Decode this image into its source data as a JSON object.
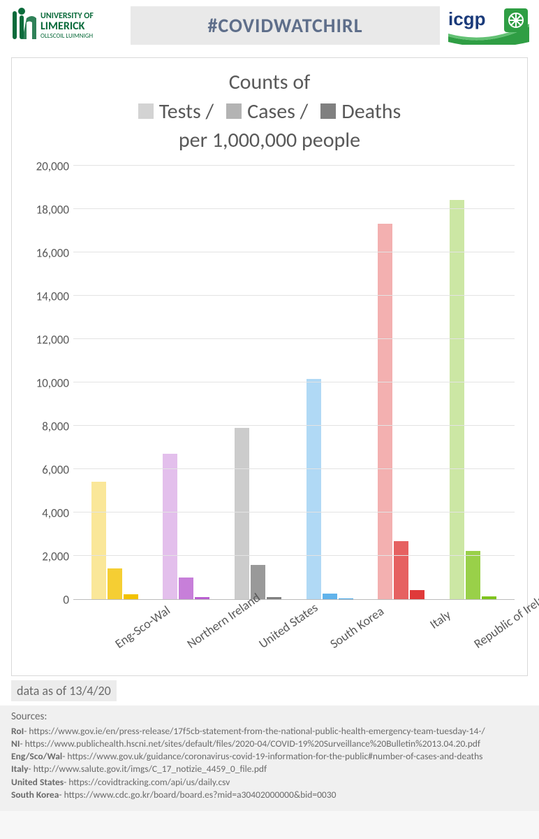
{
  "header": {
    "banner": "#COVIDWATCHIRL",
    "ul_logo_text_top": "UNIVERSITY OF",
    "ul_logo_text_mid": "LIMERICK",
    "ul_logo_text_sub": "OLLSCOIL LUIMNIGH",
    "icgp_text": "icgp"
  },
  "chart": {
    "type": "grouped-bar",
    "title_line1": "Counts of",
    "title_line2": "per 1,000,000 people",
    "legend": [
      {
        "label": "Tests /",
        "opacity": 0.35
      },
      {
        "label": "Cases /",
        "opacity": 0.6
      },
      {
        "label": "Deaths",
        "opacity": 1.0
      }
    ],
    "legend_swatch_base": "#808080",
    "y": {
      "min": 0,
      "max": 20000,
      "step": 2000,
      "ticks": [
        0,
        2000,
        4000,
        6000,
        8000,
        10000,
        12000,
        14000,
        16000,
        18000,
        20000
      ]
    },
    "categories": [
      {
        "label": "Eng-Sco-Wal",
        "hue": "#f2c200",
        "tests": 5400,
        "cases": 1400,
        "deaths": 200
      },
      {
        "label": "Northern Ireland",
        "hue": "#b95fd0",
        "tests": 6700,
        "cases": 1000,
        "deaths": 80
      },
      {
        "label": "United States",
        "hue": "#808080",
        "tests": 7900,
        "cases": 1550,
        "deaths": 80
      },
      {
        "label": "South Korea",
        "hue": "#39a0e6",
        "tests": 10150,
        "cases": 250,
        "deaths": 10
      },
      {
        "label": "Italy",
        "hue": "#e03a3a",
        "tests": 17300,
        "cases": 2650,
        "deaths": 400
      },
      {
        "label": "Republic of Ireland",
        "hue": "#7fc41c",
        "tests": 18400,
        "cases": 2200,
        "deaths": 100
      }
    ],
    "bar_opacities": {
      "tests": 0.4,
      "cases": 0.8,
      "deaths": 1.0
    },
    "grid_color": "#e3e3e3",
    "axis_color": "#bcbcbc",
    "label_color": "#595959",
    "label_fontsize": 17,
    "title_fontsize": 30,
    "background": "#ffffff"
  },
  "date_note": "data as of 13/4/20",
  "sources": {
    "header": "Sources:",
    "items": [
      {
        "k": "RoI",
        "v": "- https://www.gov.ie/en/press-release/17f5cb-statement-from-the-national-public-health-emergency-team-tuesday-14-/"
      },
      {
        "k": "NI",
        "v": "- https://www.publichealth.hscni.net/sites/default/files/2020-04/COVID-19%20Surveillance%20Bulletin%2013.04.20.pdf"
      },
      {
        "k": "Eng/Sco/Wal",
        "v": "- https://www.gov.uk/guidance/coronavirus-covid-19-information-for-the-public#number-of-cases-and-deaths"
      },
      {
        "k": "Italy",
        "v": "- http://www.salute.gov.it/imgs/C_17_notizie_4459_0_file.pdf"
      },
      {
        "k": "United States",
        "v": "- https://covidtracking.com/api/us/daily.csv"
      },
      {
        "k": "South Korea",
        "v": "- https://www.cdc.go.kr/board/board.es?mid=a30402000000&bid=0030"
      }
    ]
  }
}
